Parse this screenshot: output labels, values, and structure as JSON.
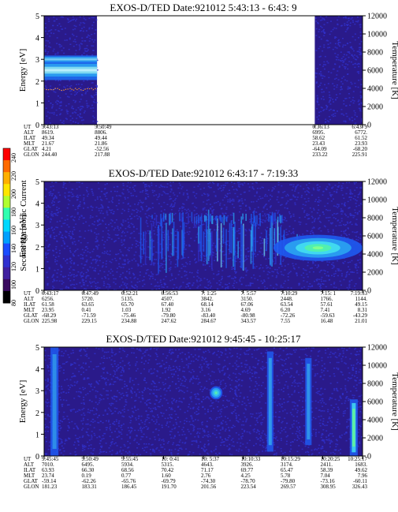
{
  "colors": {
    "background": "#2a1a8a",
    "noise": "#3030c8",
    "band_core": "#7fd8f0",
    "band_edge": "#1e6cf0",
    "plot_bg": "#ffffff"
  },
  "colorbar": {
    "label": "Second Harmonic Current",
    "ticks": [
      "240",
      "220",
      "200",
      "180",
      "160",
      "140",
      "120",
      "100",
      "80"
    ],
    "colors": [
      "#ff0000",
      "#ff6a00",
      "#ffb000",
      "#ffe600",
      "#b0ff30",
      "#30ffb0",
      "#00d8ff",
      "#00a0ff",
      "#1a4cff",
      "#3030d0",
      "#4020a0",
      "#3a0a60",
      "#000000"
    ]
  },
  "chart_data": [
    {
      "type": "heatmap",
      "title": "EXOS-D/TED   Date:921012  5:43:13 - 6:43: 9",
      "ylabel": "Energy [eV]",
      "y2label": "Temperature [K]",
      "ylim": [
        0,
        5
      ],
      "y2lim": [
        0,
        12000
      ],
      "yticks": [
        "0",
        "1",
        "2",
        "3",
        "4",
        "5"
      ],
      "y2ticks": [
        "0",
        "2000",
        "4000",
        "6000",
        "8000",
        "10000",
        "12000"
      ],
      "data_segments": [
        [
          0,
          0.166
        ],
        [
          0.85,
          1.0
        ]
      ],
      "features": [
        {
          "kind": "band",
          "x": [
            0,
            0.166
          ],
          "center_ev": 2.5,
          "width_ev": 0.9,
          "intensity": 1.0
        },
        {
          "kind": "band",
          "x": [
            0,
            0.166
          ],
          "center_ev": 3.0,
          "width_ev": 0.35,
          "intensity": 0.5
        }
      ],
      "temperature_trace": {
        "x": [
          0,
          0.166
        ],
        "temp_k": 3900
      },
      "info_rows": [
        {
          "label": "UT",
          "values": [
            "5:43:13",
            "5:50:49",
            "6:36:13",
            "6:43: 9"
          ]
        },
        {
          "label": "ALT",
          "values": [
            "8619.",
            "8806.",
            "6995.",
            "6772."
          ]
        },
        {
          "label": "ILAT",
          "values": [
            "49.34",
            "49.44",
            "58.62",
            "61.52"
          ]
        },
        {
          "label": "MLT",
          "values": [
            "21.67",
            "21.86",
            "23.43",
            "23.93"
          ]
        },
        {
          "label": "GLAT",
          "values": [
            "4.21",
            "-52.56",
            "-64.09",
            "-68.20"
          ]
        },
        {
          "label": "GLON",
          "values": [
            "244.40",
            "217.88",
            "233.22",
            "225.91"
          ]
        }
      ],
      "info_xfrac": [
        0,
        0.166,
        0.85,
        1.0
      ]
    },
    {
      "type": "heatmap",
      "title": "EXOS-D/TED   Date:921012  6:43:17 - 7:19:33",
      "ylabel": "Energy [eV]",
      "y2label": "Temperature [K]",
      "ylim": [
        0,
        5
      ],
      "y2lim": [
        0,
        12000
      ],
      "yticks": [
        "0",
        "1",
        "2",
        "3",
        "4",
        "5"
      ],
      "y2ticks": [
        "0",
        "2000",
        "4000",
        "6000",
        "8000",
        "10000",
        "12000"
      ],
      "data_segments": [
        [
          0,
          1.0
        ]
      ],
      "features": [
        {
          "kind": "streaks",
          "x": [
            0.3,
            0.8
          ],
          "center_ev": 2.2,
          "width_ev": 2.4,
          "intensity": 0.55
        },
        {
          "kind": "streaks",
          "x": [
            0.33,
            0.75
          ],
          "center_ev": 3.3,
          "width_ev": 0.6,
          "intensity": 0.45
        },
        {
          "kind": "blob",
          "x": [
            0.72,
            1.0
          ],
          "center_ev": 1.95,
          "width_ev": 1.2,
          "intensity": 1.0
        }
      ],
      "temperature_trace": null,
      "info_rows": [
        {
          "label": "UT",
          "values": [
            "6:43:17",
            "6:47:49",
            "6:52:21",
            "6:56:53",
            "7: 1:25",
            "7: 5:57",
            "7:10:29",
            "7:15: 1",
            "7:19:33"
          ]
        },
        {
          "label": "ALT",
          "values": [
            "6256.",
            "5720.",
            "5135.",
            "4507.",
            "3842.",
            "3150.",
            "2448.",
            "1766.",
            "1144."
          ]
        },
        {
          "label": "ILAT",
          "values": [
            "61.58",
            "63.65",
            "65.70",
            "67.40",
            "68.14",
            "67.06",
            "63.54",
            "57.61",
            "49.15"
          ]
        },
        {
          "label": "MLT",
          "values": [
            "23.95",
            "0.41",
            "1.03",
            "1.92",
            "3.16",
            "4.69",
            "6.20",
            "7.41",
            "8.31"
          ]
        },
        {
          "label": "GLAT",
          "values": [
            "-68.29",
            "-71.59",
            "-75.46",
            "-79.80",
            "-83.40",
            "-80.98",
            "-72.26",
            "-59.63",
            "-43.29"
          ]
        },
        {
          "label": "GLON",
          "values": [
            "225.98",
            "229.15",
            "234.88",
            "247.62",
            "284.67",
            "343.57",
            "7.55",
            "16.48",
            "21.01"
          ]
        }
      ],
      "info_xfrac": [
        0,
        0.125,
        0.25,
        0.375,
        0.5,
        0.625,
        0.75,
        0.875,
        1.0
      ]
    },
    {
      "type": "heatmap",
      "title": "EXOS-D/TED   Date:921012  9:45:45 - 10:25:17",
      "ylabel": "Energy [eV]",
      "y2label": "Temperature [K]",
      "ylim": [
        0,
        5
      ],
      "y2lim": [
        0,
        12000
      ],
      "yticks": [
        "0",
        "1",
        "2",
        "3",
        "4",
        "5"
      ],
      "y2ticks": [
        "0",
        "2000",
        "4000",
        "6000",
        "8000",
        "10000",
        "12000"
      ],
      "data_segments": [
        [
          0,
          1.0
        ]
      ],
      "features": [
        {
          "kind": "column",
          "x": [
            0.02,
            0.045
          ],
          "center_ev": 2.5,
          "width_ev": 5.0,
          "intensity": 0.5
        },
        {
          "kind": "blob",
          "x": [
            0.52,
            0.56
          ],
          "center_ev": 2.9,
          "width_ev": 0.6,
          "intensity": 0.6
        },
        {
          "kind": "column",
          "x": [
            0.7,
            0.72
          ],
          "center_ev": 2.5,
          "width_ev": 4.6,
          "intensity": 0.6
        },
        {
          "kind": "column",
          "x": [
            0.82,
            0.84
          ],
          "center_ev": 2.5,
          "width_ev": 4.0,
          "intensity": 0.55
        },
        {
          "kind": "column",
          "x": [
            0.96,
            0.985
          ],
          "center_ev": 1.3,
          "width_ev": 2.6,
          "intensity": 1.0
        }
      ],
      "temperature_trace": null,
      "info_rows": [
        {
          "label": "UT",
          "values": [
            "9:45:45",
            "9:50:49",
            "9:55:45",
            "10: 0:41",
            "10: 5:37",
            "10:10:33",
            "10:15:29",
            "10:20:25",
            "10:25:17"
          ]
        },
        {
          "label": "ALT",
          "values": [
            "7010.",
            "6495.",
            "5934.",
            "5315.",
            "4643.",
            "3926.",
            "3174.",
            "2411.",
            "1683."
          ]
        },
        {
          "label": "ILAT",
          "values": [
            "63.93",
            "66.30",
            "68.56",
            "70.42",
            "71.17",
            "69.77",
            "65.47",
            "58.39",
            "49.62"
          ]
        },
        {
          "label": "MLT",
          "values": [
            "23.74",
            "0.19",
            "0.77",
            "1.60",
            "2.76",
            "4.25",
            "5.78",
            "7.04",
            "7.96"
          ]
        },
        {
          "label": "GLAT",
          "values": [
            "-59.14",
            "-62.26",
            "-65.76",
            "-69.79",
            "-74.30",
            "-78.70",
            "-79.80",
            "-73.16",
            "-60.11"
          ]
        },
        {
          "label": "GLON",
          "values": [
            "181.23",
            "183.31",
            "186.45",
            "191.70",
            "201.56",
            "223.54",
            "269.57",
            "308.95",
            "326.43"
          ]
        }
      ],
      "info_xfrac": [
        0,
        0.125,
        0.25,
        0.375,
        0.5,
        0.625,
        0.75,
        0.875,
        1.0
      ]
    }
  ]
}
